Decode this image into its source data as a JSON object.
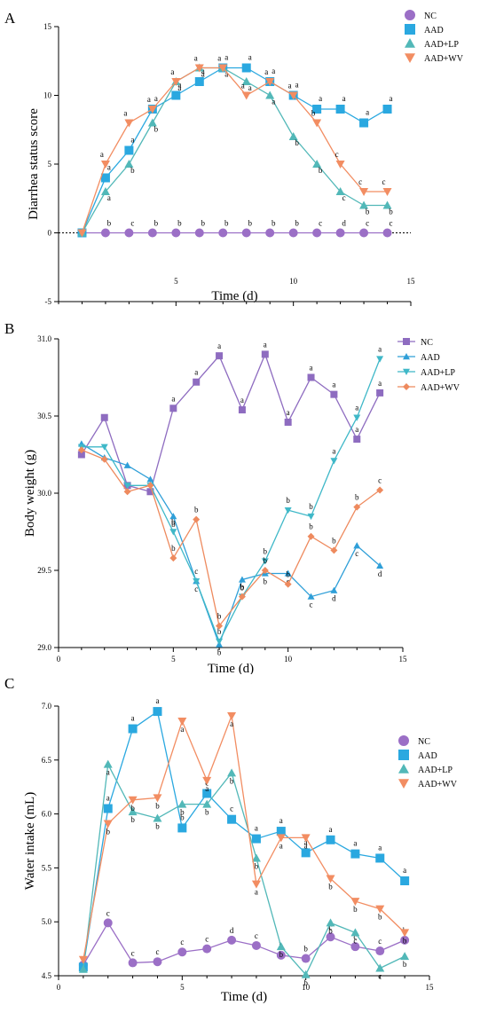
{
  "colors": {
    "NC": "#9b6fc6",
    "AAD": "#2aa8e0",
    "AAD+LP": "#52b8b8",
    "AAD+WV": "#f28d62"
  },
  "colors_b": {
    "NC": "#8e6cc0",
    "AAD": "#2f9fd8",
    "AAD+LP": "#3fb8c8",
    "AAD+WV": "#ee8a5e"
  },
  "chart_data": [
    {
      "type": "line",
      "panel_label": "A",
      "xlabel": "Time (d)",
      "ylabel": "Diarrhea status score",
      "xlim": [
        0,
        15
      ],
      "ylim": [
        -5,
        15
      ],
      "xticks": [
        5,
        10,
        15
      ],
      "yticks": [
        -5,
        0,
        5,
        10,
        15
      ],
      "legend_position": "top-right",
      "series": [
        {
          "name": "NC",
          "marker": "circle",
          "x": [
            1,
            2,
            3,
            4,
            5,
            6,
            7,
            8,
            9,
            10,
            11,
            12,
            13,
            14
          ],
          "values": [
            0,
            0,
            0,
            0,
            0,
            0,
            0,
            0,
            0,
            0,
            0,
            0,
            0,
            0
          ],
          "labels": [
            "",
            "b",
            "c",
            "b",
            "b",
            "b",
            "b",
            "b",
            "b",
            "b",
            "c",
            "d",
            "c",
            "c"
          ]
        },
        {
          "name": "AAD",
          "marker": "square",
          "x": [
            1,
            2,
            3,
            4,
            5,
            6,
            7,
            8,
            9,
            10,
            11,
            12,
            13,
            14
          ],
          "values": [
            0,
            4,
            6,
            9,
            10,
            11,
            12,
            12,
            11,
            10,
            9,
            9,
            8,
            9
          ],
          "labels": [
            "",
            "a",
            "a",
            "a",
            "a",
            "a",
            "a",
            "a",
            "a",
            "a",
            "a",
            "a",
            "a",
            "a"
          ]
        },
        {
          "name": "AAD+LP",
          "marker": "triangle-up",
          "x": [
            1,
            2,
            3,
            4,
            5,
            6,
            7,
            8,
            9,
            10,
            11,
            12,
            13,
            14
          ],
          "values": [
            0,
            3,
            5,
            8,
            11,
            12,
            12,
            11,
            10,
            7,
            5,
            3,
            2,
            2
          ],
          "labels": [
            "",
            "a",
            "b",
            "b",
            "a",
            "a",
            "a",
            "a",
            "a",
            "b",
            "b",
            "c",
            "b",
            "b"
          ]
        },
        {
          "name": "AAD+WV",
          "marker": "triangle-down",
          "x": [
            1,
            2,
            3,
            4,
            5,
            6,
            7,
            8,
            9,
            10,
            11,
            12,
            13,
            14
          ],
          "values": [
            0,
            5,
            8,
            9,
            11,
            12,
            12,
            10,
            11,
            10,
            8,
            5,
            3,
            3
          ],
          "labels": [
            "",
            "a",
            "a",
            "a",
            "a",
            "a",
            "a",
            "a",
            "a",
            "a",
            "b",
            "c",
            "c",
            "c"
          ]
        }
      ]
    },
    {
      "type": "line",
      "panel_label": "B",
      "xlabel": "Time (d)",
      "ylabel": "Body weight (g)",
      "xlim": [
        0,
        15
      ],
      "ylim": [
        29.0,
        31.0
      ],
      "xticks": [
        0,
        5,
        10,
        15
      ],
      "yticks": [
        29.0,
        29.5,
        30.0,
        30.5,
        31.0
      ],
      "legend_position": "top-right",
      "series": [
        {
          "name": "NC",
          "marker": "square",
          "x": [
            1,
            2,
            3,
            4,
            5,
            6,
            7,
            8,
            9,
            10,
            11,
            12,
            13,
            14
          ],
          "values": [
            30.25,
            30.49,
            30.05,
            30.01,
            30.55,
            30.72,
            30.89,
            30.54,
            30.9,
            30.46,
            30.75,
            30.64,
            30.35,
            30.65
          ],
          "labels": [
            "",
            "",
            "",
            "",
            "a",
            "a",
            "a",
            "a",
            "a",
            "a",
            "a",
            "a",
            "a",
            "a"
          ]
        },
        {
          "name": "AAD",
          "marker": "triangle-up",
          "x": [
            1,
            2,
            3,
            4,
            5,
            6,
            7,
            8,
            9,
            10,
            11,
            12,
            13,
            14
          ],
          "values": [
            30.32,
            30.23,
            30.18,
            30.09,
            29.85,
            29.43,
            29.02,
            29.44,
            29.48,
            29.48,
            29.33,
            29.37,
            29.66,
            29.53
          ],
          "labels": [
            "",
            "",
            "",
            "",
            "b",
            "c",
            "b",
            "b",
            "b",
            "c",
            "c",
            "d",
            "c",
            "d"
          ]
        },
        {
          "name": "AAD+LP",
          "marker": "triangle-down",
          "x": [
            1,
            2,
            3,
            4,
            5,
            6,
            7,
            8,
            9,
            10,
            11,
            12,
            13,
            14
          ],
          "values": [
            30.3,
            30.3,
            30.05,
            30.05,
            29.75,
            29.43,
            29.04,
            29.33,
            29.56,
            29.89,
            29.85,
            30.21,
            30.49,
            30.87
          ],
          "labels": [
            "",
            "",
            "",
            "",
            "b",
            "c",
            "b",
            "b",
            "b",
            "b",
            "b",
            "a",
            "a",
            "a"
          ]
        },
        {
          "name": "AAD+WV",
          "marker": "diamond",
          "x": [
            1,
            2,
            3,
            4,
            5,
            6,
            7,
            8,
            9,
            10,
            11,
            12,
            13,
            14
          ],
          "values": [
            30.28,
            30.22,
            30.01,
            30.05,
            29.58,
            29.83,
            29.14,
            29.33,
            29.5,
            29.41,
            29.72,
            29.63,
            29.91,
            30.02
          ],
          "labels": [
            "",
            "",
            "",
            "",
            "b",
            "b",
            "b",
            "b",
            "b",
            "b",
            "b",
            "b",
            "b",
            "c"
          ]
        }
      ]
    },
    {
      "type": "line",
      "panel_label": "C",
      "xlabel": "Time (d)",
      "ylabel": "Water intake (mL)",
      "xlim": [
        0,
        15
      ],
      "ylim": [
        4.5,
        7.0
      ],
      "xticks": [
        0,
        5,
        10,
        15
      ],
      "yticks": [
        4.5,
        5.0,
        5.5,
        6.0,
        6.5,
        7.0
      ],
      "legend_position": "top-right",
      "series": [
        {
          "name": "NC",
          "marker": "circle",
          "x": [
            1,
            2,
            3,
            4,
            5,
            6,
            7,
            8,
            9,
            10,
            11,
            12,
            13,
            14
          ],
          "values": [
            4.6,
            4.99,
            4.62,
            4.63,
            4.72,
            4.75,
            4.83,
            4.78,
            4.69,
            4.66,
            4.86,
            4.77,
            4.73,
            4.83
          ],
          "labels": [
            "",
            "c",
            "c",
            "c",
            "c",
            "c",
            "d",
            "c",
            "b",
            "b",
            "c",
            "c",
            "c",
            "b"
          ]
        },
        {
          "name": "AAD",
          "marker": "square",
          "x": [
            1,
            2,
            3,
            4,
            5,
            6,
            7,
            8,
            9,
            10,
            11,
            12,
            13,
            14
          ],
          "values": [
            4.58,
            6.05,
            6.79,
            6.95,
            5.87,
            6.19,
            5.95,
            5.77,
            5.84,
            5.64,
            5.76,
            5.63,
            5.59,
            5.38
          ],
          "labels": [
            "",
            "a",
            "a",
            "a",
            "b",
            "c",
            "c",
            "a",
            "a",
            "a",
            "a",
            "a",
            "a",
            "a"
          ]
        },
        {
          "name": "AAD+LP",
          "marker": "triangle-up",
          "x": [
            1,
            2,
            3,
            4,
            5,
            6,
            7,
            8,
            9,
            10,
            11,
            12,
            13,
            14
          ],
          "values": [
            4.56,
            6.46,
            6.02,
            5.96,
            6.09,
            6.09,
            6.38,
            5.59,
            4.77,
            4.51,
            4.99,
            4.9,
            4.57,
            4.68
          ],
          "labels": [
            "",
            "a",
            "b",
            "b",
            "b",
            "b",
            "b",
            "b",
            "b",
            "b",
            "b",
            "c",
            "c",
            "b"
          ]
        },
        {
          "name": "AAD+WV",
          "marker": "triangle-down",
          "x": [
            1,
            2,
            3,
            4,
            5,
            6,
            7,
            8,
            9,
            10,
            11,
            12,
            13,
            14
          ],
          "values": [
            4.65,
            5.91,
            6.13,
            6.15,
            6.86,
            6.31,
            6.91,
            5.35,
            5.78,
            5.78,
            5.4,
            5.19,
            5.12,
            4.9
          ],
          "labels": [
            "",
            "b",
            "b",
            "b",
            "a",
            "a",
            "a",
            "a",
            "a",
            "a",
            "b",
            "b",
            "b",
            "b"
          ]
        }
      ]
    }
  ]
}
